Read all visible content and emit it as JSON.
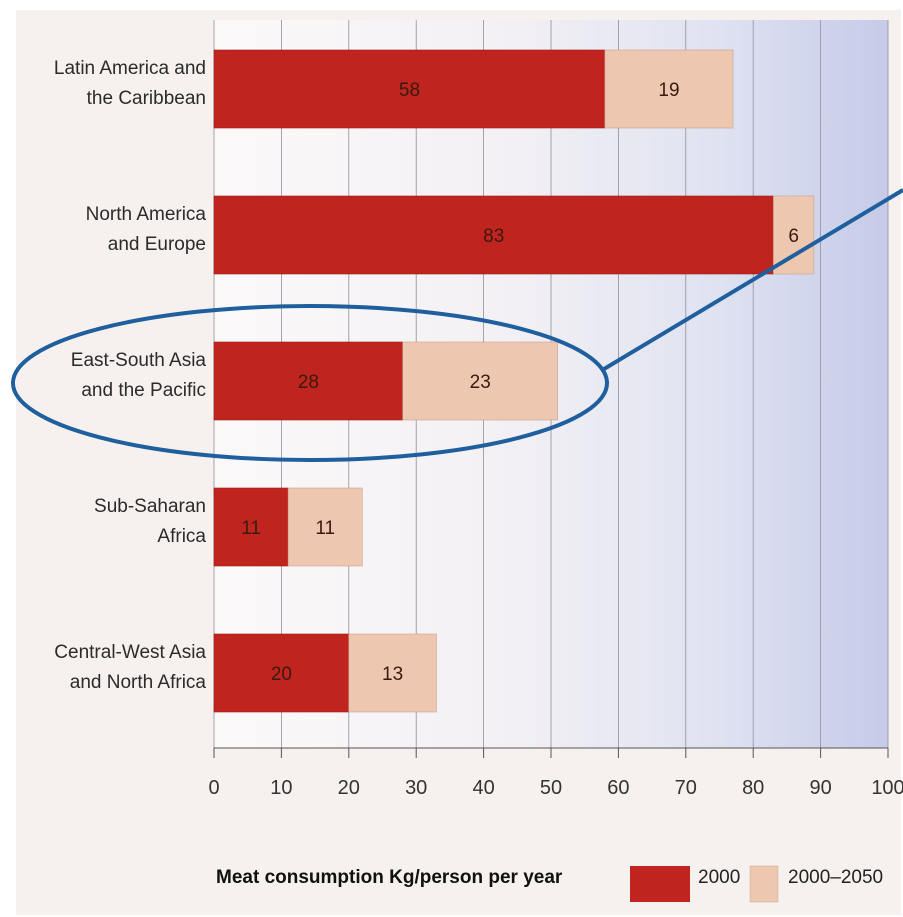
{
  "chart_data": {
    "type": "bar",
    "orientation": "horizontal",
    "stacked": true,
    "categories": [
      [
        "Latin America and",
        "the Caribbean"
      ],
      [
        "North America",
        "and Europe"
      ],
      [
        "East-South Asia",
        "and the Pacific"
      ],
      [
        "Sub-Saharan",
        "Africa"
      ],
      [
        "Central-West Asia",
        "and North Africa"
      ]
    ],
    "series": [
      {
        "name": "2000",
        "values": [
          58,
          83,
          28,
          11,
          20
        ],
        "data_labels": [
          "58",
          "83",
          "28",
          "11",
          "20"
        ]
      },
      {
        "name": "2000–2050",
        "values": [
          19,
          6,
          23,
          11,
          13
        ],
        "data_labels": [
          "19",
          "6",
          "23",
          "11",
          "13"
        ]
      }
    ],
    "xlabel": "Meat consumption Kg/person per year",
    "xlim": [
      0,
      100
    ],
    "xticks": [
      0,
      10,
      20,
      30,
      40,
      50,
      60,
      70,
      80,
      90,
      100
    ],
    "xtick_labels": [
      "0",
      "10",
      "20",
      "30",
      "40",
      "50",
      "60",
      "70",
      "80",
      "90",
      "100"
    ],
    "grid": "vertical",
    "legend_position": "bottom-right",
    "highlighted_category": 2,
    "colors": {
      "series_2000": "#c0241e",
      "series_2000_2050": "#eec7b0",
      "highlight_outline": "#1f5f9e",
      "background_light": "#f6f1ef",
      "background_blue": "#c9cfea"
    }
  }
}
